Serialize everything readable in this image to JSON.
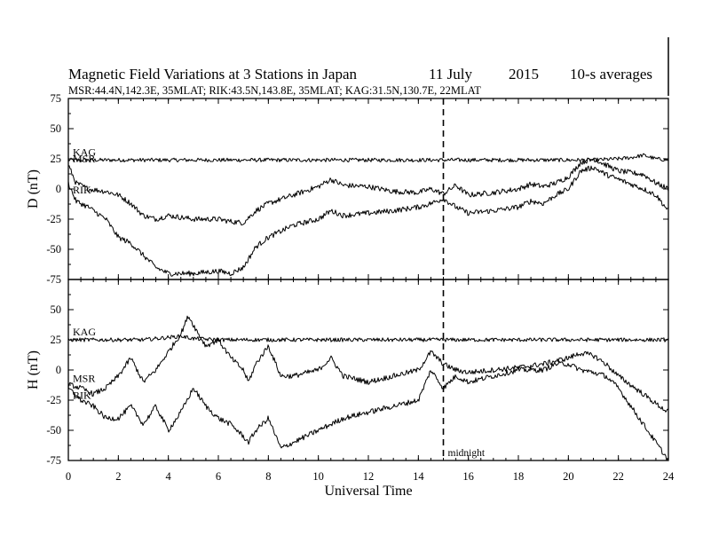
{
  "title_line": {
    "text": "Magnetic Field Variations at 3 Stations in Japan",
    "date": "11 July",
    "year": "2015",
    "averaging": "10-s averages"
  },
  "subtitle": "MSR:44.4N,142.3E, 35MLAT;  RIK:43.5N,143.8E, 35MLAT;  KAG:31.5N,130.7E, 22MLAT",
  "chart_data": {
    "type": "line",
    "xlabel": "Universal Time",
    "xlim": [
      0,
      24
    ],
    "xticks": [
      0,
      2,
      4,
      6,
      8,
      10,
      12,
      14,
      16,
      18,
      20,
      22,
      24
    ],
    "annotation": {
      "text": "midnight",
      "x": 15
    },
    "panels": [
      {
        "ylabel": "D (nT)",
        "ylim": [
          -75,
          75
        ],
        "yticks": [
          75,
          50,
          25,
          0,
          -25,
          -50,
          -75
        ],
        "series": [
          {
            "name": "KAG",
            "x": [
              0,
              0.5,
              1,
              2,
              3,
              4,
              5,
              6,
              7,
              8,
              9,
              10,
              11,
              12,
              13,
              14,
              15,
              16,
              17,
              18,
              19,
              20,
              21,
              22,
              22.5,
              23,
              23.5,
              24
            ],
            "y": [
              24,
              24,
              24,
              24,
              24,
              24,
              24,
              24,
              24,
              24,
              24,
              24,
              24,
              24,
              24,
              24,
              24,
              24,
              24,
              24,
              24,
              24,
              24,
              25,
              26,
              28,
              25,
              24
            ]
          },
          {
            "name": "MSR",
            "x": [
              0,
              0.3,
              0.8,
              1.5,
              2,
              2.5,
              3,
              3.5,
              4,
              5,
              6,
              6.5,
              7,
              7.5,
              8,
              9,
              10,
              10.5,
              11,
              12,
              13,
              14,
              14.5,
              15,
              15.5,
              16,
              17,
              18,
              18.5,
              19,
              19.5,
              20,
              20.5,
              21,
              21.5,
              22,
              23,
              23.5,
              24
            ],
            "y": [
              20,
              5,
              0,
              -2,
              -5,
              -12,
              -22,
              -25,
              -22,
              -25,
              -25,
              -27,
              -28,
              -18,
              -12,
              -5,
              2,
              8,
              3,
              2,
              -2,
              -3,
              0,
              -4,
              3,
              -5,
              -3,
              0,
              4,
              2,
              5,
              10,
              22,
              25,
              20,
              15,
              12,
              5,
              0
            ]
          },
          {
            "name": "RIK",
            "x": [
              0,
              0.3,
              0.8,
              1.5,
              2,
              2.5,
              3,
              3.5,
              4,
              5,
              6,
              6.5,
              7,
              7.5,
              8,
              9,
              10,
              10.5,
              11,
              12,
              13,
              14,
              14.5,
              15,
              15.5,
              16,
              17,
              18,
              18.5,
              19,
              19.5,
              20,
              20.5,
              21,
              21.5,
              22,
              23,
              23.5,
              24
            ],
            "y": [
              5,
              -10,
              -15,
              -25,
              -40,
              -45,
              -55,
              -65,
              -70,
              -70,
              -68,
              -70,
              -65,
              -48,
              -40,
              -30,
              -25,
              -18,
              -22,
              -20,
              -18,
              -15,
              -12,
              -8,
              -15,
              -20,
              -18,
              -15,
              -10,
              -12,
              -5,
              0,
              15,
              18,
              12,
              8,
              0,
              -5,
              -18
            ]
          }
        ]
      },
      {
        "ylabel": "H (nT)",
        "ylim": [
          -75,
          75
        ],
        "yticks": [
          50,
          25,
          0,
          -25,
          -50,
          -75
        ],
        "series": [
          {
            "name": "KAG",
            "x": [
              0,
              1,
              2,
              3,
              3.5,
              4,
              4.5,
              5,
              6,
              8,
              10,
              12,
              14,
              16,
              18,
              20,
              22,
              24
            ],
            "y": [
              25,
              25,
              25,
              25,
              26,
              27,
              28,
              26,
              25,
              25,
              25,
              25,
              25,
              25,
              25,
              25,
              25,
              25
            ]
          },
          {
            "name": "MSR",
            "x": [
              0,
              0.5,
              1,
              1.5,
              2,
              2.5,
              3,
              3.5,
              4,
              4.5,
              4.8,
              5.2,
              5.5,
              6,
              6.5,
              7,
              7.2,
              7.5,
              8,
              8.2,
              8.5,
              9,
              10,
              10.5,
              11,
              12,
              13,
              14,
              14.5,
              15,
              15.5,
              16,
              17,
              18,
              19,
              20,
              20.5,
              21,
              21.5,
              22,
              23,
              23.5,
              24
            ],
            "y": [
              -12,
              -15,
              -20,
              -15,
              -5,
              10,
              -10,
              0,
              15,
              30,
              45,
              30,
              20,
              25,
              10,
              0,
              -10,
              5,
              20,
              10,
              -5,
              -5,
              0,
              10,
              -5,
              -10,
              -5,
              0,
              15,
              5,
              0,
              -2,
              0,
              2,
              5,
              10,
              14,
              12,
              5,
              -5,
              -20,
              -28,
              -35
            ]
          },
          {
            "name": "RIK",
            "x": [
              0,
              0.5,
              1,
              1.5,
              2,
              2.5,
              3,
              3.5,
              4,
              4.5,
              5,
              5.5,
              6,
              6.5,
              7,
              7.2,
              7.5,
              8,
              8.3,
              8.5,
              9,
              10,
              11,
              12,
              13,
              14,
              14.5,
              15,
              15.5,
              16,
              17,
              18,
              19,
              19.5,
              20,
              20.5,
              21,
              21.5,
              22,
              22.5,
              23,
              23.5,
              24
            ],
            "y": [
              -15,
              -25,
              -30,
              -40,
              -40,
              -30,
              -45,
              -30,
              -50,
              -35,
              -15,
              -30,
              -40,
              -45,
              -55,
              -60,
              -50,
              -40,
              -55,
              -65,
              -60,
              -50,
              -40,
              -35,
              -30,
              -25,
              0,
              -15,
              -5,
              -10,
              -5,
              0,
              0,
              5,
              5,
              0,
              -2,
              -5,
              -15,
              -30,
              -45,
              -60,
              -75
            ]
          }
        ]
      }
    ]
  }
}
